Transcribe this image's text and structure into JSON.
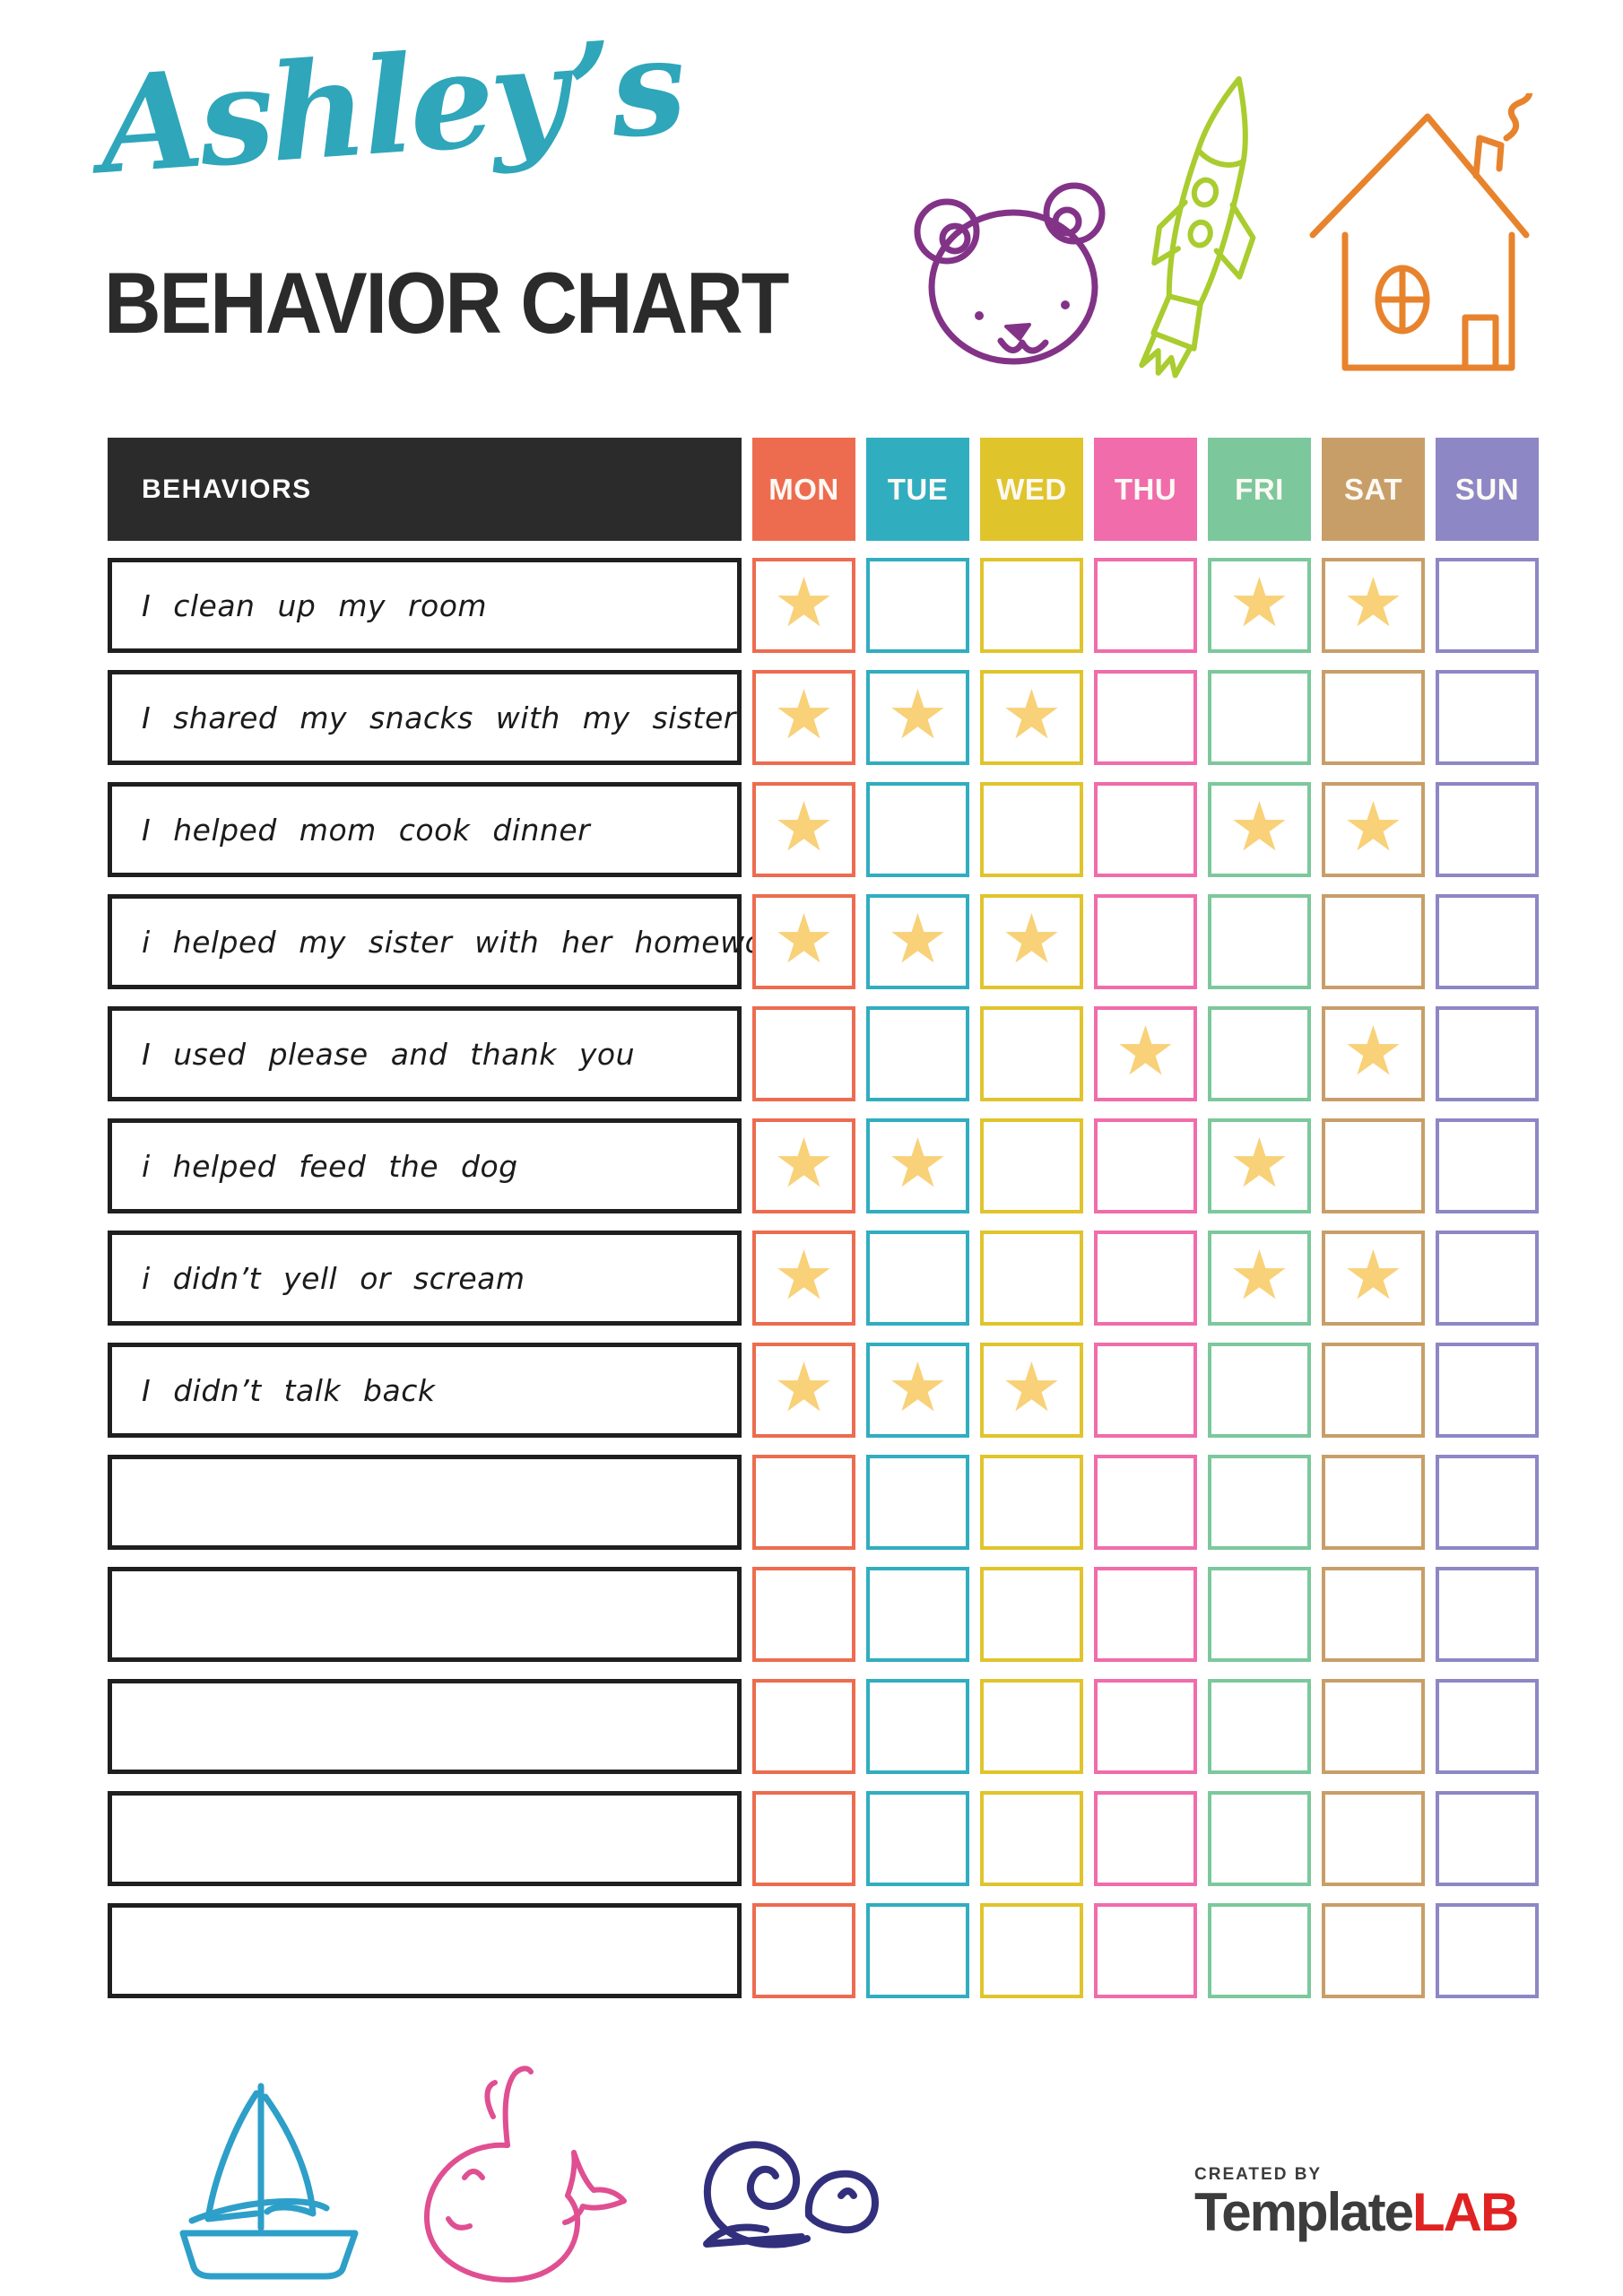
{
  "header": {
    "owner_name": "Ashley’s",
    "title": "BEHAVIOR CHART",
    "owner_color": "#2FA6BA",
    "title_color": "#2B2B2B",
    "doodles": [
      "bear-doodle",
      "rocket-doodle",
      "house-doodle"
    ]
  },
  "table": {
    "behaviors_header": "BEHAVIORS",
    "header_bg": "#2B2B2B",
    "star_color": "#F8D178",
    "star_icon": "★",
    "days": [
      {
        "label": "MON",
        "color": "#ED6C4F"
      },
      {
        "label": "TUE",
        "color": "#31ADC0"
      },
      {
        "label": "WED",
        "color": "#E0C42C"
      },
      {
        "label": "THU",
        "color": "#F06CAA"
      },
      {
        "label": "FRI",
        "color": "#7CC89C"
      },
      {
        "label": "SAT",
        "color": "#C89E68"
      },
      {
        "label": "SUN",
        "color": "#8D87C5"
      }
    ],
    "rows": [
      {
        "behavior": "I clean up my room",
        "stars": [
          1,
          0,
          0,
          0,
          1,
          1,
          0
        ]
      },
      {
        "behavior": "I shared my snacks with my sister",
        "stars": [
          1,
          1,
          1,
          0,
          0,
          0,
          0
        ]
      },
      {
        "behavior": "I helped mom cook dinner",
        "stars": [
          1,
          0,
          0,
          0,
          1,
          1,
          0
        ]
      },
      {
        "behavior": "i helped my sister with her homework",
        "stars": [
          1,
          1,
          1,
          0,
          0,
          0,
          0
        ]
      },
      {
        "behavior": "I used please and thank you",
        "stars": [
          0,
          0,
          0,
          1,
          0,
          1,
          0
        ]
      },
      {
        "behavior": "i helped feed the dog",
        "stars": [
          1,
          1,
          0,
          0,
          1,
          0,
          0
        ]
      },
      {
        "behavior": "i didn’t yell or scream",
        "stars": [
          1,
          0,
          0,
          0,
          1,
          1,
          0
        ]
      },
      {
        "behavior": "I didn’t talk back",
        "stars": [
          1,
          1,
          1,
          0,
          0,
          0,
          0
        ]
      },
      {
        "behavior": "",
        "stars": [
          0,
          0,
          0,
          0,
          0,
          0,
          0
        ]
      },
      {
        "behavior": "",
        "stars": [
          0,
          0,
          0,
          0,
          0,
          0,
          0
        ]
      },
      {
        "behavior": "",
        "stars": [
          0,
          0,
          0,
          0,
          0,
          0,
          0
        ]
      },
      {
        "behavior": "",
        "stars": [
          0,
          0,
          0,
          0,
          0,
          0,
          0
        ]
      },
      {
        "behavior": "",
        "stars": [
          0,
          0,
          0,
          0,
          0,
          0,
          0
        ]
      }
    ]
  },
  "footer": {
    "doodles": [
      "sailboat-doodle",
      "whale-doodle",
      "snail-doodle"
    ],
    "credit": {
      "created_by": "CREATED BY",
      "brand_primary": "Template",
      "brand_accent": "LAB",
      "accent_color": "#E02222"
    }
  },
  "doodle_colors": {
    "bear": "#823387",
    "rocket": "#A9CC2F",
    "house": "#E8832D",
    "sailboat": "#2D9FC9",
    "whale": "#DF4F92",
    "snail": "#32307C"
  }
}
